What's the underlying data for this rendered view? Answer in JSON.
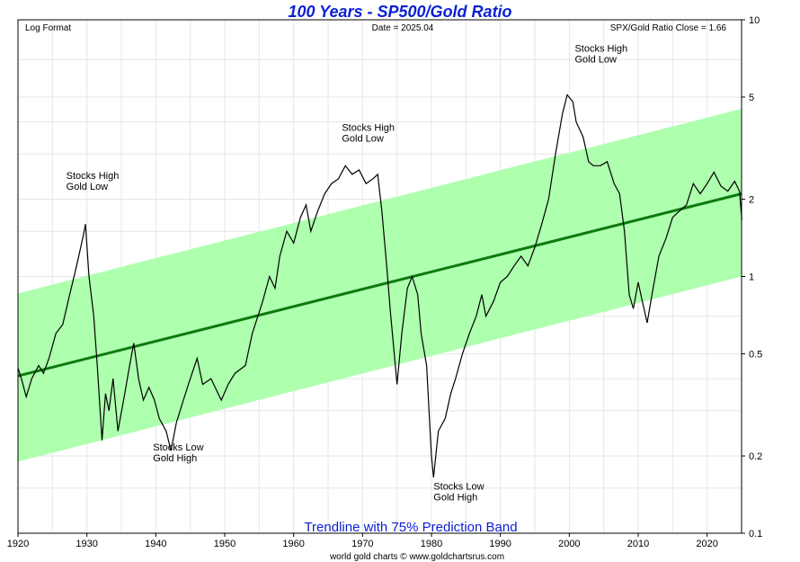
{
  "chart_data": {
    "type": "line",
    "title": "100 Years - SP500/Gold Ratio",
    "subtitle": "Trendline with 75% Prediction Band",
    "scale_note": "Log Format",
    "date_label": "Date = 2025.04",
    "close_label": "SPX/Gold Ratio Close = 1.66",
    "credit": "world gold charts © www.goldchartsrus.com",
    "x_range": [
      1920,
      2025
    ],
    "y_range": [
      0.1,
      10
    ],
    "y_scale": "log",
    "grid": true,
    "x_ticks": [
      "1920",
      "1930",
      "1940",
      "1950",
      "1960",
      "1970",
      "1980",
      "1990",
      "2000",
      "2010",
      "2020"
    ],
    "x_tick_values": [
      1920,
      1930,
      1940,
      1950,
      1960,
      1970,
      1980,
      1990,
      2000,
      2010,
      2020
    ],
    "y_ticks": [
      "10",
      "5",
      "2",
      "1",
      "0.5",
      "0.2",
      "0.1"
    ],
    "y_tick_values": [
      10,
      5,
      2,
      1,
      0.5,
      0.2,
      0.1
    ],
    "colors": {
      "band": "#aaffaa",
      "trend": "#0c7a0c",
      "line": "#000000",
      "title": "#0a1fd6"
    },
    "trendline": {
      "start": [
        1920,
        0.41
      ],
      "end": [
        2025,
        2.1
      ]
    },
    "band": {
      "upper_start": 0.86,
      "upper_end": 4.5,
      "lower_start": 0.19,
      "lower_end": 1.0
    },
    "annotations": [
      {
        "lines": [
          "Stocks High",
          "Gold Low"
        ],
        "x": 1927.0,
        "y": 2.4
      },
      {
        "lines": [
          "Stocks Low",
          "Gold High"
        ],
        "x": 1939.6,
        "y": 0.21
      },
      {
        "lines": [
          "Stocks High",
          "Gold Low"
        ],
        "x": 1967.0,
        "y": 3.7
      },
      {
        "lines": [
          "Stocks Low",
          "Gold High"
        ],
        "x": 1980.3,
        "y": 0.148
      },
      {
        "lines": [
          "Stocks High",
          "Gold Low"
        ],
        "x": 2000.8,
        "y": 7.5
      }
    ],
    "series": [
      {
        "values": [
          [
            1920.0,
            0.44
          ],
          [
            1920.5,
            0.4
          ],
          [
            1921.2,
            0.34
          ],
          [
            1922.0,
            0.4
          ],
          [
            1923.0,
            0.45
          ],
          [
            1923.7,
            0.42
          ],
          [
            1924.5,
            0.48
          ],
          [
            1925.5,
            0.6
          ],
          [
            1926.5,
            0.65
          ],
          [
            1927.5,
            0.85
          ],
          [
            1928.5,
            1.1
          ],
          [
            1929.5,
            1.45
          ],
          [
            1929.8,
            1.6
          ],
          [
            1930.3,
            1.0
          ],
          [
            1931.0,
            0.7
          ],
          [
            1931.5,
            0.45
          ],
          [
            1932.2,
            0.23
          ],
          [
            1932.7,
            0.35
          ],
          [
            1933.2,
            0.3
          ],
          [
            1933.8,
            0.4
          ],
          [
            1934.5,
            0.25
          ],
          [
            1935.5,
            0.35
          ],
          [
            1936.2,
            0.45
          ],
          [
            1936.8,
            0.55
          ],
          [
            1937.5,
            0.4
          ],
          [
            1938.2,
            0.33
          ],
          [
            1939.0,
            0.37
          ],
          [
            1939.8,
            0.33
          ],
          [
            1940.5,
            0.28
          ],
          [
            1941.5,
            0.25
          ],
          [
            1942.2,
            0.21
          ],
          [
            1943.0,
            0.27
          ],
          [
            1944.0,
            0.33
          ],
          [
            1945.0,
            0.4
          ],
          [
            1946.0,
            0.48
          ],
          [
            1946.8,
            0.38
          ],
          [
            1948.0,
            0.4
          ],
          [
            1949.5,
            0.33
          ],
          [
            1950.5,
            0.38
          ],
          [
            1951.5,
            0.42
          ],
          [
            1953.0,
            0.45
          ],
          [
            1954.0,
            0.6
          ],
          [
            1955.5,
            0.8
          ],
          [
            1956.5,
            1.0
          ],
          [
            1957.3,
            0.9
          ],
          [
            1958.0,
            1.2
          ],
          [
            1959.0,
            1.5
          ],
          [
            1960.0,
            1.35
          ],
          [
            1961.0,
            1.7
          ],
          [
            1961.8,
            1.9
          ],
          [
            1962.5,
            1.5
          ],
          [
            1963.5,
            1.8
          ],
          [
            1964.5,
            2.1
          ],
          [
            1965.5,
            2.3
          ],
          [
            1966.5,
            2.4
          ],
          [
            1967.5,
            2.7
          ],
          [
            1968.5,
            2.5
          ],
          [
            1969.5,
            2.6
          ],
          [
            1970.5,
            2.3
          ],
          [
            1971.5,
            2.4
          ],
          [
            1972.2,
            2.5
          ],
          [
            1972.8,
            1.8
          ],
          [
            1973.5,
            1.1
          ],
          [
            1974.0,
            0.75
          ],
          [
            1974.6,
            0.5
          ],
          [
            1975.0,
            0.38
          ],
          [
            1975.7,
            0.6
          ],
          [
            1976.5,
            0.9
          ],
          [
            1977.2,
            1.0
          ],
          [
            1978.0,
            0.85
          ],
          [
            1978.5,
            0.6
          ],
          [
            1979.3,
            0.45
          ],
          [
            1980.0,
            0.2
          ],
          [
            1980.3,
            0.165
          ],
          [
            1981.0,
            0.25
          ],
          [
            1982.0,
            0.28
          ],
          [
            1982.8,
            0.35
          ],
          [
            1983.5,
            0.4
          ],
          [
            1984.5,
            0.5
          ],
          [
            1985.5,
            0.6
          ],
          [
            1986.5,
            0.7
          ],
          [
            1987.3,
            0.85
          ],
          [
            1987.9,
            0.7
          ],
          [
            1989.0,
            0.8
          ],
          [
            1990.0,
            0.95
          ],
          [
            1991.0,
            1.0
          ],
          [
            1992.0,
            1.1
          ],
          [
            1993.0,
            1.2
          ],
          [
            1994.0,
            1.1
          ],
          [
            1995.0,
            1.3
          ],
          [
            1996.0,
            1.6
          ],
          [
            1997.0,
            2.0
          ],
          [
            1998.0,
            3.0
          ],
          [
            1999.0,
            4.3
          ],
          [
            1999.7,
            5.1
          ],
          [
            2000.5,
            4.8
          ],
          [
            2001.0,
            4.0
          ],
          [
            2002.0,
            3.5
          ],
          [
            2002.8,
            2.8
          ],
          [
            2003.5,
            2.7
          ],
          [
            2004.5,
            2.7
          ],
          [
            2005.5,
            2.8
          ],
          [
            2006.5,
            2.3
          ],
          [
            2007.3,
            2.1
          ],
          [
            2008.0,
            1.5
          ],
          [
            2008.7,
            0.85
          ],
          [
            2009.3,
            0.75
          ],
          [
            2010.0,
            0.95
          ],
          [
            2010.6,
            0.8
          ],
          [
            2011.3,
            0.66
          ],
          [
            2012.0,
            0.85
          ],
          [
            2013.0,
            1.2
          ],
          [
            2014.0,
            1.4
          ],
          [
            2015.0,
            1.7
          ],
          [
            2016.0,
            1.8
          ],
          [
            2017.0,
            1.9
          ],
          [
            2018.0,
            2.3
          ],
          [
            2019.0,
            2.1
          ],
          [
            2020.0,
            2.3
          ],
          [
            2021.0,
            2.55
          ],
          [
            2022.0,
            2.25
          ],
          [
            2023.0,
            2.15
          ],
          [
            2024.0,
            2.35
          ],
          [
            2024.7,
            2.15
          ],
          [
            2025.04,
            1.66
          ]
        ]
      }
    ]
  }
}
